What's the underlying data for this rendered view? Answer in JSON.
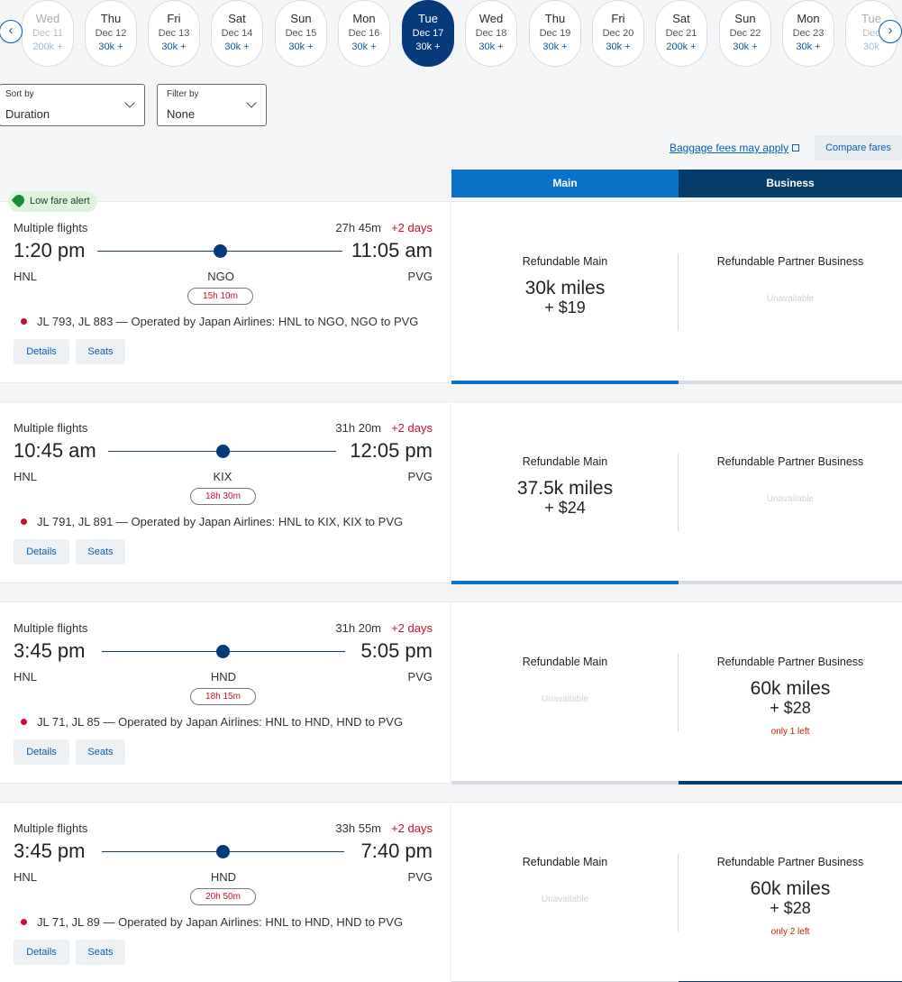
{
  "date_strip": {
    "prev_arrow": "‹",
    "next_arrow": "›",
    "dates": [
      {
        "dow": "Wed",
        "date": "Dec 11",
        "price": "200k +",
        "state": "faded"
      },
      {
        "dow": "Thu",
        "date": "Dec 12",
        "price": "30k +",
        "state": "normal"
      },
      {
        "dow": "Fri",
        "date": "Dec 13",
        "price": "30k +",
        "state": "normal"
      },
      {
        "dow": "Sat",
        "date": "Dec 14",
        "price": "30k +",
        "state": "normal"
      },
      {
        "dow": "Sun",
        "date": "Dec 15",
        "price": "30k +",
        "state": "normal"
      },
      {
        "dow": "Mon",
        "date": "Dec 16",
        "price": "30k +",
        "state": "normal"
      },
      {
        "dow": "Tue",
        "date": "Dec 17",
        "price": "30k +",
        "state": "selected"
      },
      {
        "dow": "Wed",
        "date": "Dec 18",
        "price": "30k +",
        "state": "normal"
      },
      {
        "dow": "Thu",
        "date": "Dec 19",
        "price": "30k +",
        "state": "normal"
      },
      {
        "dow": "Fri",
        "date": "Dec 20",
        "price": "30k +",
        "state": "normal"
      },
      {
        "dow": "Sat",
        "date": "Dec 21",
        "price": "200k +",
        "state": "normal"
      },
      {
        "dow": "Sun",
        "date": "Dec 22",
        "price": "30k +",
        "state": "normal"
      },
      {
        "dow": "Mon",
        "date": "Dec 23",
        "price": "30k +",
        "state": "normal"
      },
      {
        "dow": "Tue",
        "date": "Dec",
        "price": "30k",
        "state": "faded"
      }
    ]
  },
  "sort": {
    "label": "Sort by",
    "value": "Duration"
  },
  "filter": {
    "label": "Filter by",
    "value": "None"
  },
  "baggage_link": "Baggage fees may apply",
  "compare_button": "Compare fares",
  "tabs": {
    "main": "Main",
    "business": "Business"
  },
  "low_fare_alert": "Low fare alert",
  "buttons": {
    "details": "Details",
    "seats": "Seats"
  },
  "colors": {
    "selected_date": "#053b7a",
    "main_tab": "#0a72c8",
    "business_tab": "#063d6b",
    "accent_red": "#c8102e"
  },
  "flights": [
    {
      "type": "Multiple flights",
      "duration": "27h 45m",
      "days": "+2 days",
      "depart_time": "1:20 pm",
      "arrive_time": "11:05 am",
      "origin": "HNL",
      "stop": "NGO",
      "dest": "PVG",
      "layover": "15h 10m",
      "operated": "JL 793, JL 883 — Operated by Japan Airlines: HNL to NGO, NGO to PVG",
      "main": {
        "name": "Refundable Main",
        "miles": "30k miles",
        "tax": "+ $19",
        "unavailable": "",
        "note": ""
      },
      "business": {
        "name": "Refundable Partner Business",
        "miles": "",
        "tax": "",
        "unavailable": "Unavailable",
        "note": ""
      },
      "selected": "main"
    },
    {
      "type": "Multiple flights",
      "duration": "31h 20m",
      "days": "+2 days",
      "depart_time": "10:45 am",
      "arrive_time": "12:05 pm",
      "origin": "HNL",
      "stop": "KIX",
      "dest": "PVG",
      "layover": "18h 30m",
      "operated": "JL 791, JL 891 — Operated by Japan Airlines: HNL to KIX, KIX to PVG",
      "main": {
        "name": "Refundable Main",
        "miles": "37.5k miles",
        "tax": "+ $24",
        "unavailable": "",
        "note": ""
      },
      "business": {
        "name": "Refundable Partner Business",
        "miles": "",
        "tax": "",
        "unavailable": "Unavailable",
        "note": ""
      },
      "selected": "main"
    },
    {
      "type": "Multiple flights",
      "duration": "31h 20m",
      "days": "+2 days",
      "depart_time": "3:45 pm",
      "arrive_time": "5:05 pm",
      "origin": "HNL",
      "stop": "HND",
      "dest": "PVG",
      "layover": "18h 15m",
      "operated": "JL 71, JL 85 — Operated by Japan Airlines: HNL to HND, HND to PVG",
      "main": {
        "name": "Refundable Main",
        "miles": "",
        "tax": "",
        "unavailable": "Unavailable",
        "note": ""
      },
      "business": {
        "name": "Refundable Partner Business",
        "miles": "60k miles",
        "tax": "+ $28",
        "unavailable": "",
        "note": "only 1 left"
      },
      "selected": "business"
    },
    {
      "type": "Multiple flights",
      "duration": "33h 55m",
      "days": "+2 days",
      "depart_time": "3:45 pm",
      "arrive_time": "7:40 pm",
      "origin": "HNL",
      "stop": "HND",
      "dest": "PVG",
      "layover": "20h 50m",
      "operated": "JL 71, JL 89 — Operated by Japan Airlines: HNL to HND, HND to PVG",
      "main": {
        "name": "Refundable Main",
        "miles": "",
        "tax": "",
        "unavailable": "Unavailable",
        "note": ""
      },
      "business": {
        "name": "Refundable Partner Business",
        "miles": "60k miles",
        "tax": "+ $28",
        "unavailable": "",
        "note": "only 2 left"
      },
      "selected": "business"
    }
  ]
}
